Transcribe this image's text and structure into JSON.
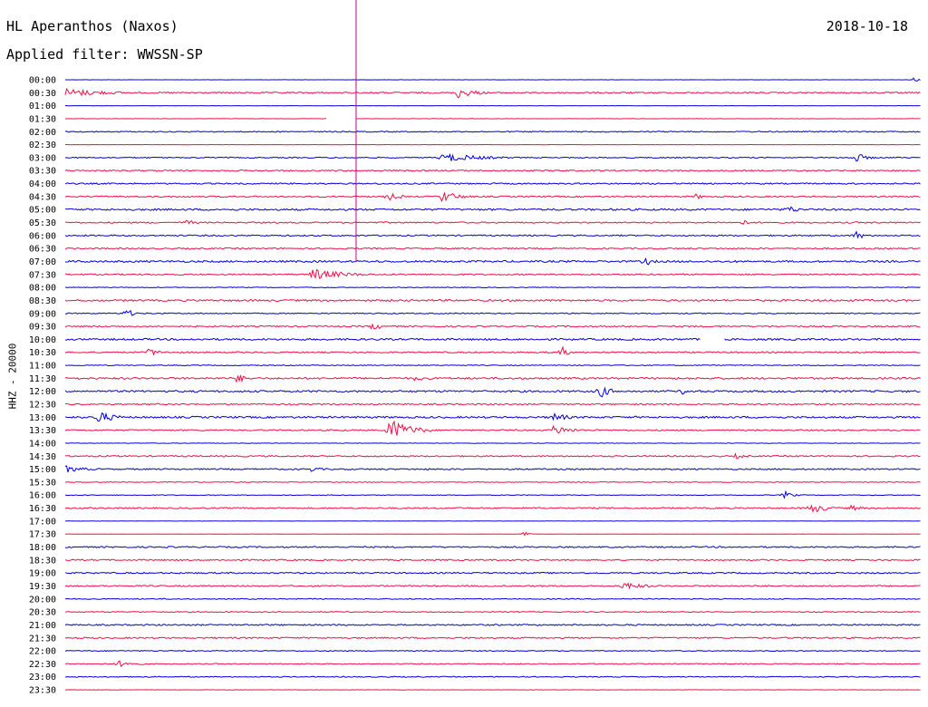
{
  "header": {
    "station": "HL Aperanthos (Naxos)",
    "date": "2018-10-18",
    "filter_text": "Applied filter: WWSSN-SP",
    "channel_label": "HHZ - 20000"
  },
  "colors": {
    "blue": "#0000dd",
    "red": "#ee1144",
    "marker": "#cc0077"
  },
  "chart_data": {
    "type": "line",
    "title": "HL Aperanthos (Naxos)",
    "subtitle": "Applied filter: WWSSN-SP",
    "ylabel": "HHZ - 20000",
    "rows": [
      "00:00",
      "00:30",
      "01:00",
      "01:30",
      "02:00",
      "02:30",
      "03:00",
      "03:30",
      "04:00",
      "04:30",
      "05:00",
      "05:30",
      "06:00",
      "06:30",
      "07:00",
      "07:30",
      "08:00",
      "08:30",
      "09:00",
      "09:30",
      "10:00",
      "10:30",
      "11:00",
      "11:30",
      "12:00",
      "12:30",
      "13:00",
      "13:30",
      "14:00",
      "14:30",
      "15:00",
      "15:30",
      "16:00",
      "16:30",
      "17:00",
      "17:30",
      "18:00",
      "18:30",
      "19:00",
      "19:30",
      "20:00",
      "20:30",
      "21:00",
      "21:30",
      "22:00",
      "22:30",
      "23:00",
      "23:30"
    ],
    "row_minutes": 30,
    "row_colors": [
      "blue",
      "red"
    ],
    "noise_level": [
      0.2,
      1.5,
      0.2,
      0.3,
      1.2,
      0.2,
      1.2,
      1.5,
      1.5,
      1.5,
      2.0,
      1.5,
      1.5,
      1.5,
      2.0,
      1.5,
      0.8,
      2.0,
      1.2,
      1.5,
      2.0,
      1.5,
      1.0,
      2.0,
      2.0,
      1.5,
      2.0,
      1.5,
      0.5,
      1.5,
      1.5,
      0.8,
      0.8,
      1.5,
      0.2,
      0.3,
      1.5,
      1.5,
      1.5,
      1.5,
      1.0,
      1.0,
      1.5,
      1.5,
      1.0,
      1.0,
      1.0,
      0.3
    ],
    "events": [
      {
        "row": 0,
        "minute": 29.7,
        "amp": 3,
        "dur": 0.5
      },
      {
        "row": 1,
        "minute": 0.0,
        "amp": 5,
        "dur": 3.0
      },
      {
        "row": 1,
        "minute": 13.7,
        "amp": 7,
        "dur": 1.3
      },
      {
        "row": 6,
        "minute": 13.2,
        "amp": 5,
        "dur": 3.0
      },
      {
        "row": 6,
        "minute": 27.7,
        "amp": 6,
        "dur": 0.8
      },
      {
        "row": 9,
        "minute": 11.3,
        "amp": 5,
        "dur": 0.9
      },
      {
        "row": 9,
        "minute": 13.2,
        "amp": 7,
        "dur": 1.2
      },
      {
        "row": 9,
        "minute": 22.1,
        "amp": 4,
        "dur": 0.5
      },
      {
        "row": 10,
        "minute": 25.3,
        "amp": 5,
        "dur": 0.9
      },
      {
        "row": 11,
        "minute": 4.2,
        "amp": 4,
        "dur": 0.7
      },
      {
        "row": 11,
        "minute": 23.7,
        "amp": 4,
        "dur": 0.6
      },
      {
        "row": 12,
        "minute": 27.7,
        "amp": 7,
        "dur": 0.5
      },
      {
        "row": 14,
        "minute": 20.3,
        "amp": 6,
        "dur": 0.6
      },
      {
        "row": 15,
        "minute": 8.6,
        "amp": 7,
        "dur": 2.3
      },
      {
        "row": 18,
        "minute": 2.1,
        "amp": 7,
        "dur": 0.5
      },
      {
        "row": 19,
        "minute": 10.7,
        "amp": 4,
        "dur": 1.2
      },
      {
        "row": 21,
        "minute": 2.9,
        "amp": 5,
        "dur": 0.9
      },
      {
        "row": 21,
        "minute": 17.4,
        "amp": 7,
        "dur": 0.5
      },
      {
        "row": 23,
        "minute": 6.0,
        "amp": 6,
        "dur": 0.7
      },
      {
        "row": 23,
        "minute": 12.2,
        "amp": 3,
        "dur": 1.3
      },
      {
        "row": 24,
        "minute": 18.7,
        "amp": 9,
        "dur": 0.8
      },
      {
        "row": 24,
        "minute": 21.6,
        "amp": 4,
        "dur": 0.8
      },
      {
        "row": 26,
        "minute": 1.1,
        "amp": 8,
        "dur": 1.2
      },
      {
        "row": 26,
        "minute": 17.1,
        "amp": 6,
        "dur": 1.0
      },
      {
        "row": 27,
        "minute": 11.3,
        "amp": 14,
        "dur": 1.6
      },
      {
        "row": 27,
        "minute": 17.1,
        "amp": 6,
        "dur": 1.3
      },
      {
        "row": 29,
        "minute": 23.5,
        "amp": 3,
        "dur": 1.0
      },
      {
        "row": 30,
        "minute": 0.0,
        "amp": 4,
        "dur": 1.5
      },
      {
        "row": 30,
        "minute": 8.6,
        "amp": 3,
        "dur": 0.9
      },
      {
        "row": 32,
        "minute": 25.2,
        "amp": 5,
        "dur": 0.6
      },
      {
        "row": 33,
        "minute": 26.1,
        "amp": 7,
        "dur": 1.1
      },
      {
        "row": 33,
        "minute": 27.5,
        "amp": 4,
        "dur": 0.8
      },
      {
        "row": 35,
        "minute": 16.1,
        "amp": 5,
        "dur": 0.3
      },
      {
        "row": 39,
        "minute": 19.5,
        "amp": 5,
        "dur": 1.6
      },
      {
        "row": 45,
        "minute": 1.8,
        "amp": 4,
        "dur": 1.3
      }
    ],
    "gaps": [
      {
        "row": 3,
        "start": 9.2,
        "end": 10.2
      },
      {
        "row": 20,
        "start": 22.3,
        "end": 23.1
      }
    ],
    "marker_minute": 10.2,
    "marker_until_row": 14
  }
}
